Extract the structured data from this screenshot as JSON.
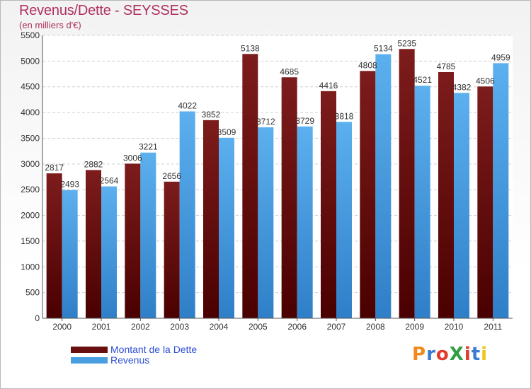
{
  "title": "Revenus/Dette - SEYSSES",
  "subtitle": "(en milliers d'€)",
  "colors": {
    "dette": "#7a1a1a",
    "dette_dark": "#4a0000",
    "revenus": "#5aaeea",
    "revenus_dark": "#2f80c8",
    "title": "#b03060",
    "legend_text": "#2d4fd6"
  },
  "legend": [
    {
      "label": "Montant de la Dette",
      "color": "#6a0f0f"
    },
    {
      "label": "Revenus",
      "color": "#4a9fe0"
    }
  ],
  "logo": {
    "text": "ProXiti",
    "alt": "proxiti-logo"
  },
  "chart_data": {
    "type": "bar",
    "title": "Revenus/Dette - SEYSSES",
    "subtitle": "(en milliers d'€)",
    "categories": [
      "2000",
      "2001",
      "2002",
      "2003",
      "2004",
      "2005",
      "2006",
      "2007",
      "2008",
      "2009",
      "2010",
      "2011"
    ],
    "series": [
      {
        "name": "Montant de la Dette",
        "values": [
          2817,
          2882,
          3006,
          2656,
          3852,
          5138,
          4685,
          4416,
          4808,
          5235,
          4785,
          4506
        ]
      },
      {
        "name": "Revenus",
        "values": [
          2493,
          2564,
          3221,
          4022,
          3509,
          3712,
          3729,
          3818,
          5134,
          4521,
          4382,
          4959
        ]
      }
    ],
    "ylim": [
      0,
      5500
    ],
    "yticks": [
      0,
      500,
      1000,
      1500,
      2000,
      2500,
      3000,
      3500,
      4000,
      4500,
      5000,
      5500
    ],
    "grid": true,
    "legend_position": "bottom-left"
  }
}
